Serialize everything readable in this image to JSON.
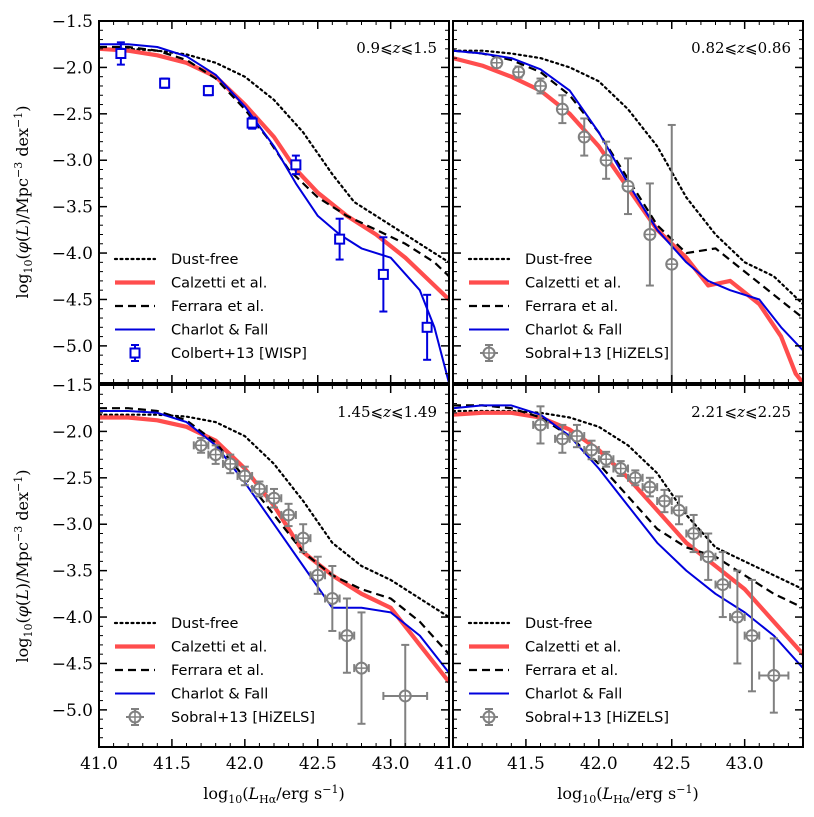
{
  "chart_data": [
    {
      "type": "line",
      "panel": "top-left",
      "annotation": "0.9⩽z⩽1.5",
      "xlim": [
        41.0,
        43.4
      ],
      "ylim": [
        -5.4,
        -1.5
      ],
      "xticks": [],
      "yticks": [
        "−1.5",
        "−2.0",
        "−2.5",
        "−3.0",
        "−3.5",
        "−4.0",
        "−4.5",
        "−5.0"
      ],
      "ytick_values": [
        -1.5,
        -2.0,
        -2.5,
        -3.0,
        -3.5,
        -4.0,
        -4.5,
        -5.0
      ],
      "legend_position": "bottom-left",
      "series": [
        {
          "name": "Dust-free",
          "style": "dotted",
          "color": "#000000",
          "x": [
            41.0,
            41.2,
            41.4,
            41.6,
            41.8,
            42.0,
            42.2,
            42.4,
            42.6,
            42.75,
            42.9,
            43.1,
            43.3,
            43.4
          ],
          "y": [
            -1.8,
            -1.8,
            -1.82,
            -1.86,
            -1.95,
            -2.1,
            -2.35,
            -2.7,
            -3.15,
            -3.45,
            -3.6,
            -3.8,
            -4.0,
            -4.1
          ]
        },
        {
          "name": "Calzetti et al.",
          "style": "solid-thick",
          "color": "#ff4d4d",
          "x": [
            41.0,
            41.2,
            41.4,
            41.6,
            41.8,
            42.0,
            42.2,
            42.35,
            42.5,
            42.7,
            42.9,
            43.1,
            43.3,
            43.4
          ],
          "y": [
            -1.8,
            -1.82,
            -1.87,
            -1.95,
            -2.1,
            -2.4,
            -2.75,
            -3.1,
            -3.35,
            -3.6,
            -3.8,
            -4.05,
            -4.35,
            -4.5
          ]
        },
        {
          "name": "Ferrara et al.",
          "style": "dashed",
          "color": "#000000",
          "x": [
            41.0,
            41.2,
            41.4,
            41.6,
            41.8,
            42.0,
            42.15,
            42.3,
            42.5,
            42.7,
            42.9,
            43.1,
            43.3,
            43.4
          ],
          "y": [
            -1.78,
            -1.78,
            -1.82,
            -1.92,
            -2.12,
            -2.45,
            -2.75,
            -3.1,
            -3.4,
            -3.6,
            -3.75,
            -3.9,
            -4.1,
            -4.25
          ]
        },
        {
          "name": "Charlot & Fall",
          "style": "solid",
          "color": "#0000dd",
          "x": [
            41.0,
            41.2,
            41.4,
            41.6,
            41.8,
            42.0,
            42.2,
            42.35,
            42.5,
            42.65,
            42.8,
            43.0,
            43.2,
            43.3,
            43.4
          ],
          "y": [
            -1.75,
            -1.75,
            -1.78,
            -1.88,
            -2.08,
            -2.42,
            -2.85,
            -3.25,
            -3.6,
            -3.8,
            -3.95,
            -4.05,
            -4.4,
            -4.8,
            -5.4
          ]
        }
      ],
      "observations": {
        "name": "Colbert+13 [WISP]",
        "marker": "square",
        "color": "#0000dd",
        "x": [
          41.15,
          41.45,
          41.75,
          42.05,
          42.35,
          42.65,
          42.95,
          43.25
        ],
        "y": [
          -1.85,
          -2.17,
          -2.25,
          -2.6,
          -3.05,
          -3.85,
          -4.23,
          -4.8
        ],
        "yerr": [
          0.12,
          0.05,
          0.05,
          0.06,
          0.1,
          0.22,
          0.4,
          0.35
        ]
      }
    },
    {
      "type": "line",
      "panel": "top-right",
      "annotation": "0.82⩽z⩽0.86",
      "xlim": [
        41.0,
        43.4
      ],
      "ylim": [
        -5.4,
        -1.5
      ],
      "xticks": [],
      "yticks": [],
      "legend_position": "bottom-left",
      "series": [
        {
          "name": "Dust-free",
          "style": "dotted",
          "color": "#000000",
          "x": [
            41.0,
            41.2,
            41.4,
            41.6,
            41.8,
            42.0,
            42.2,
            42.4,
            42.6,
            42.8,
            43.0,
            43.2,
            43.4
          ],
          "y": [
            -1.82,
            -1.82,
            -1.85,
            -1.9,
            -2.0,
            -2.15,
            -2.45,
            -2.85,
            -3.4,
            -3.8,
            -4.1,
            -4.25,
            -4.55
          ]
        },
        {
          "name": "Calzetti et al.",
          "style": "solid-thick",
          "color": "#ff4d4d",
          "x": [
            41.0,
            41.2,
            41.4,
            41.6,
            41.8,
            42.0,
            42.2,
            42.4,
            42.6,
            42.75,
            42.9,
            43.1,
            43.25,
            43.35,
            43.4
          ],
          "y": [
            -1.9,
            -1.98,
            -2.1,
            -2.25,
            -2.5,
            -2.85,
            -3.3,
            -3.75,
            -4.05,
            -4.35,
            -4.3,
            -4.55,
            -4.9,
            -5.3,
            -5.4
          ]
        },
        {
          "name": "Ferrara et al.",
          "style": "dashed",
          "color": "#000000",
          "x": [
            41.0,
            41.2,
            41.4,
            41.6,
            41.8,
            42.0,
            42.2,
            42.4,
            42.6,
            42.8,
            43.0,
            43.2,
            43.4
          ],
          "y": [
            -1.82,
            -1.85,
            -1.92,
            -2.05,
            -2.3,
            -2.7,
            -3.2,
            -3.7,
            -4.0,
            -3.95,
            -4.2,
            -4.45,
            -4.7
          ]
        },
        {
          "name": "Charlot & Fall",
          "style": "solid",
          "color": "#0000dd",
          "x": [
            41.0,
            41.2,
            41.4,
            41.6,
            41.8,
            42.0,
            42.2,
            42.4,
            42.6,
            42.75,
            42.9,
            43.1,
            43.25,
            43.4
          ],
          "y": [
            -1.82,
            -1.85,
            -1.9,
            -2.02,
            -2.25,
            -2.7,
            -3.25,
            -3.75,
            -4.1,
            -4.3,
            -4.4,
            -4.5,
            -4.8,
            -5.05
          ]
        }
      ],
      "observations": {
        "name": "Sobral+13 [HiZELS]",
        "marker": "circle-cross",
        "color": "#808080",
        "x": [
          41.3,
          41.45,
          41.6,
          41.75,
          41.9,
          42.05,
          42.2,
          42.35,
          42.5
        ],
        "y": [
          -1.95,
          -2.05,
          -2.2,
          -2.45,
          -2.75,
          -3.0,
          -3.28,
          -3.8,
          -4.12
        ],
        "yerr": [
          0.05,
          0.06,
          0.08,
          0.15,
          0.2,
          0.2,
          0.3,
          0.55,
          1.5
        ]
      }
    },
    {
      "type": "line",
      "panel": "bottom-left",
      "annotation": "1.45⩽z⩽1.49",
      "xlim": [
        41.0,
        43.4
      ],
      "ylim": [
        -5.4,
        -1.5
      ],
      "xticks": [
        "41.0",
        "41.5",
        "42.0",
        "42.5",
        "43.0"
      ],
      "xtick_values": [
        41.0,
        41.5,
        42.0,
        42.5,
        43.0
      ],
      "yticks": [
        "−1.5",
        "−2.0",
        "−2.5",
        "−3.0",
        "−3.5",
        "−4.0",
        "−4.5",
        "−5.0"
      ],
      "ytick_values": [
        -1.5,
        -2.0,
        -2.5,
        -3.0,
        -3.5,
        -4.0,
        -4.5,
        -5.0
      ],
      "legend_position": "bottom-left",
      "series": [
        {
          "name": "Dust-free",
          "style": "dotted",
          "color": "#000000",
          "x": [
            41.0,
            41.2,
            41.4,
            41.6,
            41.8,
            42.0,
            42.2,
            42.4,
            42.6,
            42.8,
            43.0,
            43.2,
            43.4
          ],
          "y": [
            -1.82,
            -1.82,
            -1.82,
            -1.84,
            -1.9,
            -2.05,
            -2.35,
            -2.75,
            -3.2,
            -3.45,
            -3.6,
            -3.8,
            -4.0
          ]
        },
        {
          "name": "Calzetti et al.",
          "style": "solid-thick",
          "color": "#ff4d4d",
          "x": [
            41.0,
            41.2,
            41.4,
            41.6,
            41.8,
            42.0,
            42.2,
            42.4,
            42.6,
            42.8,
            43.0,
            43.2,
            43.4
          ],
          "y": [
            -1.85,
            -1.85,
            -1.88,
            -1.95,
            -2.1,
            -2.4,
            -2.8,
            -3.3,
            -3.55,
            -3.75,
            -3.9,
            -4.3,
            -4.7
          ]
        },
        {
          "name": "Ferrara et al.",
          "style": "dashed",
          "color": "#000000",
          "x": [
            41.0,
            41.2,
            41.4,
            41.6,
            41.8,
            42.0,
            42.2,
            42.4,
            42.6,
            42.8,
            43.0,
            43.2,
            43.4
          ],
          "y": [
            -1.75,
            -1.75,
            -1.78,
            -1.88,
            -2.12,
            -2.5,
            -2.9,
            -3.3,
            -3.55,
            -3.7,
            -3.8,
            -4.05,
            -4.4
          ]
        },
        {
          "name": "Charlot & Fall",
          "style": "solid",
          "color": "#0000dd",
          "x": [
            41.0,
            41.2,
            41.4,
            41.6,
            41.8,
            42.0,
            42.2,
            42.4,
            42.6,
            42.8,
            43.0,
            43.2,
            43.4
          ],
          "y": [
            -1.78,
            -1.78,
            -1.8,
            -1.9,
            -2.15,
            -2.55,
            -3.0,
            -3.45,
            -3.9,
            -3.9,
            -3.95,
            -4.2,
            -4.6
          ]
        }
      ],
      "observations": {
        "name": "Sobral+13 [HiZELS]",
        "marker": "circle-cross",
        "color": "#808080",
        "x": [
          41.7,
          41.8,
          41.9,
          42.0,
          42.1,
          42.2,
          42.3,
          42.4,
          42.5,
          42.6,
          42.7,
          42.8,
          43.1
        ],
        "y": [
          -2.15,
          -2.25,
          -2.35,
          -2.48,
          -2.62,
          -2.72,
          -2.9,
          -3.15,
          -3.55,
          -3.8,
          -4.2,
          -4.55,
          -4.85
        ],
        "yerr": [
          0.08,
          0.1,
          0.1,
          0.1,
          0.08,
          0.1,
          0.12,
          0.15,
          0.2,
          0.35,
          0.4,
          0.6,
          0.55
        ],
        "xerr": [
          0.05,
          0.05,
          0.05,
          0.05,
          0.05,
          0.05,
          0.05,
          0.05,
          0.05,
          0.05,
          0.05,
          0.05,
          0.15
        ]
      }
    },
    {
      "type": "line",
      "panel": "bottom-right",
      "annotation": "2.21⩽z⩽2.25",
      "xlim": [
        41.0,
        43.4
      ],
      "ylim": [
        -5.4,
        -1.5
      ],
      "xticks": [
        "41.0",
        "41.5",
        "42.0",
        "42.5",
        "43.0"
      ],
      "xtick_values": [
        41.0,
        41.5,
        42.0,
        42.5,
        43.0
      ],
      "yticks": [],
      "legend_position": "bottom-left",
      "series": [
        {
          "name": "Dust-free",
          "style": "dotted",
          "color": "#000000",
          "x": [
            41.0,
            41.2,
            41.4,
            41.6,
            41.8,
            42.0,
            42.2,
            42.4,
            42.6,
            42.8,
            43.0,
            43.2,
            43.4
          ],
          "y": [
            -1.78,
            -1.78,
            -1.78,
            -1.8,
            -1.85,
            -1.95,
            -2.15,
            -2.45,
            -2.9,
            -3.25,
            -3.4,
            -3.55,
            -3.7
          ]
        },
        {
          "name": "Calzetti et al.",
          "style": "solid-thick",
          "color": "#ff4d4d",
          "x": [
            41.0,
            41.2,
            41.4,
            41.6,
            41.8,
            42.0,
            42.2,
            42.4,
            42.6,
            42.8,
            43.0,
            43.2,
            43.4
          ],
          "y": [
            -1.82,
            -1.8,
            -1.8,
            -1.85,
            -1.98,
            -2.2,
            -2.5,
            -2.85,
            -3.2,
            -3.45,
            -3.7,
            -4.05,
            -4.4
          ]
        },
        {
          "name": "Ferrara et al.",
          "style": "dashed",
          "color": "#000000",
          "x": [
            41.0,
            41.2,
            41.4,
            41.6,
            41.8,
            42.0,
            42.2,
            42.4,
            42.6,
            42.8,
            43.0,
            43.2,
            43.4
          ],
          "y": [
            -1.72,
            -1.72,
            -1.75,
            -1.85,
            -2.05,
            -2.35,
            -2.7,
            -3.05,
            -3.25,
            -3.35,
            -3.55,
            -3.75,
            -3.9
          ]
        },
        {
          "name": "Charlot & Fall",
          "style": "solid",
          "color": "#0000dd",
          "x": [
            41.0,
            41.2,
            41.4,
            41.6,
            41.8,
            42.0,
            42.2,
            42.4,
            42.6,
            42.8,
            43.0,
            43.2,
            43.4
          ],
          "y": [
            -1.75,
            -1.72,
            -1.72,
            -1.82,
            -2.05,
            -2.4,
            -2.8,
            -3.2,
            -3.5,
            -3.75,
            -3.95,
            -4.2,
            -4.55
          ]
        }
      ],
      "observations": {
        "name": "Sobral+13 [HiZELS]",
        "marker": "circle-cross",
        "color": "#808080",
        "x": [
          41.6,
          41.75,
          41.85,
          41.95,
          42.05,
          42.15,
          42.25,
          42.35,
          42.45,
          42.55,
          42.65,
          42.75,
          42.85,
          42.95,
          43.05,
          43.2
        ],
        "y": [
          -1.93,
          -2.08,
          -2.05,
          -2.2,
          -2.3,
          -2.4,
          -2.5,
          -2.6,
          -2.75,
          -2.85,
          -3.1,
          -3.35,
          -3.65,
          -4.0,
          -4.2,
          -4.63
        ],
        "yerr": [
          0.2,
          0.15,
          0.12,
          0.1,
          0.08,
          0.08,
          0.08,
          0.1,
          0.12,
          0.15,
          0.2,
          0.25,
          0.35,
          0.5,
          0.6,
          0.4
        ],
        "xerr": [
          0.05,
          0.05,
          0.05,
          0.05,
          0.05,
          0.05,
          0.05,
          0.05,
          0.05,
          0.05,
          0.05,
          0.05,
          0.05,
          0.05,
          0.05,
          0.1
        ]
      }
    }
  ],
  "axes": {
    "xlabel": "log₁₀(L_Hα/erg s⁻¹)",
    "ylabel": "log₁₀(φ(L)/Mpc⁻³ dex⁻¹)"
  }
}
